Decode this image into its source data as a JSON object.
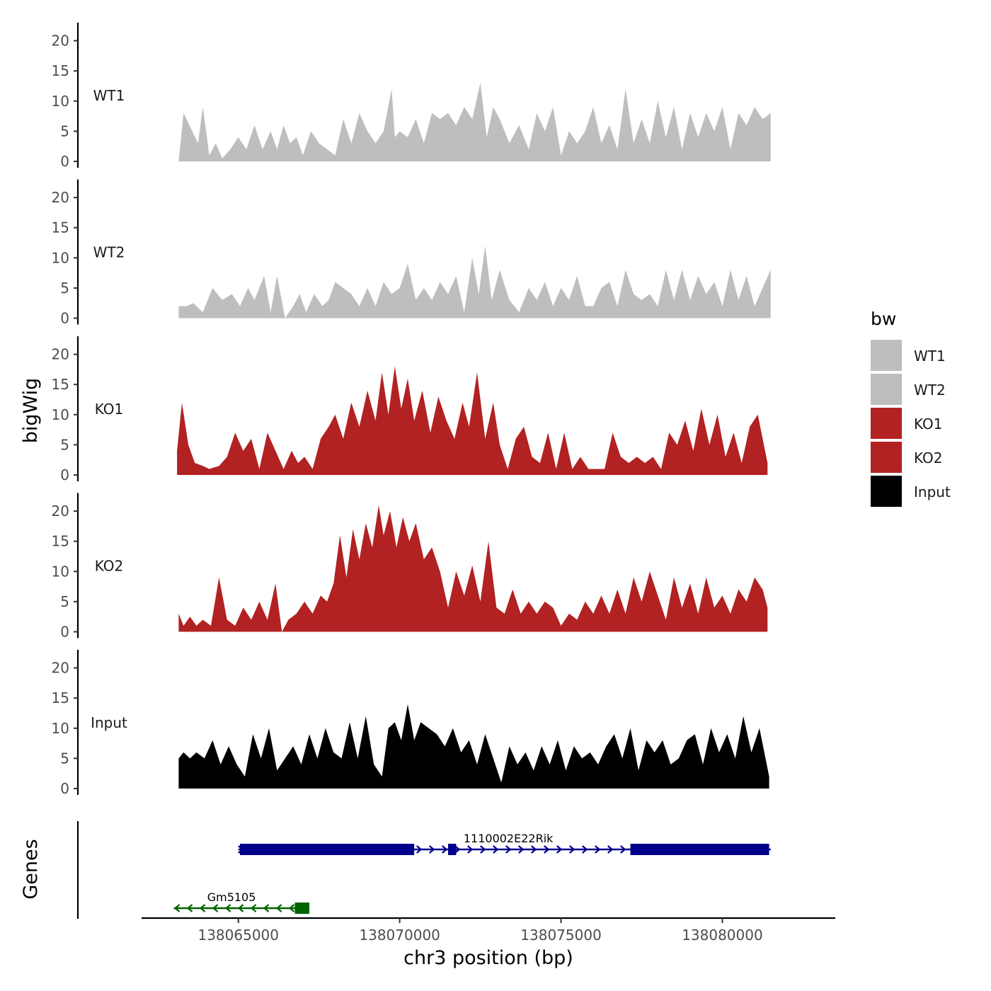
{
  "chart_data": {
    "type": "area",
    "title": "",
    "ylabel": "bigWig",
    "xlabel": "chr3 position (bp)",
    "genes_label": "Genes",
    "chromosome": "chr3",
    "xlim": [
      138062000,
      138083500
    ],
    "ylim": [
      0,
      23
    ],
    "y_ticks": [
      0,
      5,
      10,
      15,
      20
    ],
    "x_ticks": [
      138065000,
      138070000,
      138075000,
      138080000
    ],
    "x_tick_labels": [
      "138065000",
      "138070000",
      "138075000",
      "138080000"
    ],
    "legend": {
      "title": "bw",
      "entries": [
        {
          "label": "WT1",
          "color": "#bebebe"
        },
        {
          "label": "WT2",
          "color": "#bebebe"
        },
        {
          "label": "KO1",
          "color": "#b22222"
        },
        {
          "label": "KO2",
          "color": "#b22222"
        },
        {
          "label": "Input",
          "color": "#000000"
        }
      ]
    },
    "series": [
      {
        "name": "WT1",
        "color": "#bebebe",
        "x": [
          138063150,
          138063300,
          138063750,
          138063900,
          138064100,
          138064300,
          138064500,
          138064750,
          138065000,
          138065250,
          138065500,
          138065750,
          138066000,
          138066200,
          138066400,
          138066600,
          138066800,
          138067000,
          138067250,
          138067500,
          138067750,
          138068000,
          138068250,
          138068500,
          138068750,
          138069000,
          138069250,
          138069500,
          138069750,
          138069850,
          138070000,
          138070250,
          138070500,
          138070750,
          138071000,
          138071250,
          138071500,
          138071750,
          138072000,
          138072250,
          138072500,
          138072700,
          138072900,
          138073100,
          138073400,
          138073700,
          138074000,
          138074250,
          138074500,
          138074750,
          138075000,
          138075250,
          138075500,
          138075750,
          138076000,
          138076250,
          138076500,
          138076750,
          138077000,
          138077250,
          138077500,
          138077750,
          138078000,
          138078250,
          138078500,
          138078750,
          138079000,
          138079250,
          138079500,
          138079750,
          138080000,
          138080250,
          138080500,
          138080750,
          138081000,
          138081250,
          138081500
        ],
        "values": [
          0,
          8,
          3,
          9,
          1,
          3,
          0.5,
          2,
          4,
          2,
          6,
          2,
          5,
          2,
          6,
          3,
          4,
          1,
          5,
          3,
          2,
          1,
          7,
          3,
          8,
          5,
          3,
          5,
          12,
          4,
          5,
          4,
          7,
          3,
          8,
          7,
          8,
          6,
          9,
          7,
          13,
          4,
          9,
          7,
          3,
          6,
          2,
          8,
          5,
          9,
          1,
          5,
          3,
          5,
          9,
          3,
          6,
          2,
          12,
          3,
          7,
          3,
          10,
          4,
          9,
          2,
          8,
          4,
          8,
          5,
          9,
          2,
          8,
          6,
          9,
          7,
          8
        ]
      },
      {
        "name": "WT2",
        "color": "#bebebe",
        "x": [
          138063150,
          138063250,
          138063400,
          138063600,
          138063900,
          138064200,
          138064500,
          138064800,
          138065050,
          138065300,
          138065500,
          138065800,
          138066000,
          138066200,
          138066450,
          138066700,
          138066900,
          138067100,
          138067350,
          138067600,
          138067800,
          138068000,
          138068250,
          138068500,
          138068750,
          138069000,
          138069250,
          138069500,
          138069750,
          138070000,
          138070250,
          138070500,
          138070750,
          138071000,
          138071250,
          138071500,
          138071750,
          138072000,
          138072250,
          138072450,
          138072650,
          138072850,
          138073100,
          138073400,
          138073700,
          138074000,
          138074250,
          138074500,
          138074750,
          138075000,
          138075250,
          138075500,
          138075750,
          138076000,
          138076250,
          138076500,
          138076750,
          138077000,
          138077250,
          138077500,
          138077750,
          138078000,
          138078250,
          138078500,
          138078750,
          138079000,
          138079250,
          138079500,
          138079750,
          138080000,
          138080250,
          138080500,
          138080750,
          138081000,
          138081250,
          138081500
        ],
        "values": [
          2,
          2,
          2,
          2.5,
          1,
          5,
          3,
          4,
          2,
          5,
          3,
          7,
          1,
          7,
          0,
          2,
          4,
          1,
          4,
          2,
          3,
          6,
          5,
          4,
          2,
          5,
          2,
          6,
          4,
          5,
          9,
          3,
          5,
          3,
          6,
          4,
          7,
          1,
          10,
          4,
          12,
          3,
          8,
          3,
          1,
          5,
          3,
          6,
          2,
          5,
          3,
          7,
          2,
          2,
          5,
          6,
          2,
          8,
          4,
          3,
          4,
          2,
          8,
          3,
          8,
          3,
          7,
          4,
          6,
          2,
          8,
          3,
          7,
          2,
          5,
          8
        ]
      },
      {
        "name": "KO1",
        "color": "#b22222",
        "x": [
          138063100,
          138063250,
          138063450,
          138063650,
          138063900,
          138064100,
          138064400,
          138064650,
          138064900,
          138065150,
          138065400,
          138065650,
          138065900,
          138066150,
          138066400,
          138066650,
          138066850,
          138067050,
          138067300,
          138067550,
          138067800,
          138068000,
          138068250,
          138068500,
          138068750,
          138069000,
          138069250,
          138069450,
          138069650,
          138069850,
          138070050,
          138070250,
          138070450,
          138070700,
          138070950,
          138071200,
          138071450,
          138071700,
          138071950,
          138072150,
          138072400,
          138072650,
          138072900,
          138073100,
          138073350,
          138073600,
          138073850,
          138074100,
          138074350,
          138074600,
          138074850,
          138075100,
          138075350,
          138075600,
          138075850,
          138076100,
          138076350,
          138076600,
          138076850,
          138077100,
          138077350,
          138077600,
          138077850,
          138078100,
          138078350,
          138078600,
          138078850,
          138079100,
          138079350,
          138079600,
          138079850,
          138080100,
          138080350,
          138080600,
          138080850,
          138081100,
          138081400
        ],
        "values": [
          4,
          12,
          5,
          2,
          1.5,
          1,
          1.5,
          3,
          7,
          4,
          6,
          1,
          7,
          4,
          1,
          4,
          2,
          3,
          1,
          6,
          8,
          10,
          6,
          12,
          8,
          14,
          9,
          17,
          10,
          18,
          11,
          16,
          9,
          14,
          7,
          13,
          9,
          6,
          12,
          8,
          17,
          6,
          12,
          5,
          1,
          6,
          8,
          3,
          2,
          7,
          1,
          7,
          1,
          3,
          1,
          1,
          1,
          7,
          3,
          2,
          3,
          2,
          3,
          1,
          7,
          5,
          9,
          4,
          11,
          5,
          10,
          3,
          7,
          2,
          8,
          10,
          2
        ]
      },
      {
        "name": "KO2",
        "color": "#b22222",
        "x": [
          138063150,
          138063300,
          138063500,
          138063700,
          138063900,
          138064150,
          138064400,
          138064650,
          138064900,
          138065150,
          138065400,
          138065650,
          138065900,
          138066150,
          138066350,
          138066550,
          138066800,
          138067050,
          138067300,
          138067550,
          138067750,
          138067950,
          138068150,
          138068350,
          138068550,
          138068750,
          138068950,
          138069150,
          138069350,
          138069500,
          138069700,
          138069900,
          138070100,
          138070300,
          138070500,
          138070750,
          138071000,
          138071250,
          138071500,
          138071750,
          138072000,
          138072250,
          138072500,
          138072750,
          138073000,
          138073250,
          138073500,
          138073750,
          138074000,
          138074250,
          138074500,
          138074750,
          138075000,
          138075250,
          138075500,
          138075750,
          138076000,
          138076250,
          138076500,
          138076750,
          138077000,
          138077250,
          138077500,
          138077750,
          138078000,
          138078250,
          138078500,
          138078750,
          138079000,
          138079250,
          138079500,
          138079750,
          138080000,
          138080250,
          138080500,
          138080750,
          138081000,
          138081250,
          138081400
        ],
        "values": [
          3,
          1,
          2.5,
          1,
          2,
          1,
          9,
          2,
          1,
          4,
          2,
          5,
          2,
          8,
          0,
          2,
          3,
          5,
          3,
          6,
          5,
          8,
          16,
          9,
          17,
          12,
          18,
          14,
          21,
          16,
          20,
          14,
          19,
          15,
          18,
          12,
          14,
          10,
          4,
          10,
          6,
          11,
          5,
          15,
          4,
          3,
          7,
          3,
          5,
          3,
          5,
          4,
          1,
          3,
          2,
          5,
          3,
          6,
          3,
          7,
          3,
          9,
          5,
          10,
          6,
          2,
          9,
          4,
          8,
          3,
          9,
          4,
          6,
          3,
          7,
          5,
          9,
          7,
          4
        ]
      },
      {
        "name": "Input",
        "color": "#000000",
        "x": [
          138063150,
          138063300,
          138063500,
          138063700,
          138063950,
          138064200,
          138064450,
          138064700,
          138064950,
          138065200,
          138065450,
          138065700,
          138065950,
          138066200,
          138066450,
          138066700,
          138066950,
          138067200,
          138067450,
          138067700,
          138067950,
          138068200,
          138068450,
          138068700,
          138068950,
          138069200,
          138069450,
          138069650,
          138069850,
          138070050,
          138070250,
          138070450,
          138070650,
          138070900,
          138071150,
          138071400,
          138071650,
          138071900,
          138072150,
          138072400,
          138072650,
          138072900,
          138073150,
          138073400,
          138073650,
          138073900,
          138074150,
          138074400,
          138074650,
          138074900,
          138075150,
          138075400,
          138075650,
          138075900,
          138076150,
          138076400,
          138076650,
          138076900,
          138077150,
          138077400,
          138077650,
          138077900,
          138078150,
          138078400,
          138078650,
          138078900,
          138079150,
          138079400,
          138079650,
          138079900,
          138080150,
          138080400,
          138080650,
          138080900,
          138081150,
          138081450
        ],
        "values": [
          5,
          6,
          5,
          6,
          5,
          8,
          4,
          7,
          4,
          2,
          9,
          5,
          10,
          3,
          5,
          7,
          4,
          9,
          5,
          10,
          6,
          5,
          11,
          5,
          12,
          4,
          2,
          10,
          11,
          8,
          14,
          8,
          11,
          10,
          9,
          7,
          10,
          6,
          8,
          4,
          9,
          5,
          1,
          7,
          4,
          6,
          3,
          7,
          4,
          8,
          3,
          7,
          5,
          6,
          4,
          7,
          9,
          5,
          10,
          3,
          8,
          6,
          8,
          4,
          5,
          8,
          9,
          4,
          10,
          6,
          9,
          5,
          12,
          6,
          10,
          2
        ]
      }
    ],
    "genes": [
      {
        "name": "1110002E22Rik",
        "strand": "+",
        "color": "#00008b",
        "start": 138065000,
        "end": 138081500,
        "exons": [
          [
            138065050,
            138070450
          ],
          [
            138071500,
            138071750
          ],
          [
            138077150,
            138081450
          ]
        ]
      },
      {
        "name": "Gm5105",
        "strand": "-",
        "color": "#006400",
        "start": 138063000,
        "end": 138067200,
        "exons": [
          [
            138066750,
            138067200
          ]
        ]
      }
    ]
  }
}
